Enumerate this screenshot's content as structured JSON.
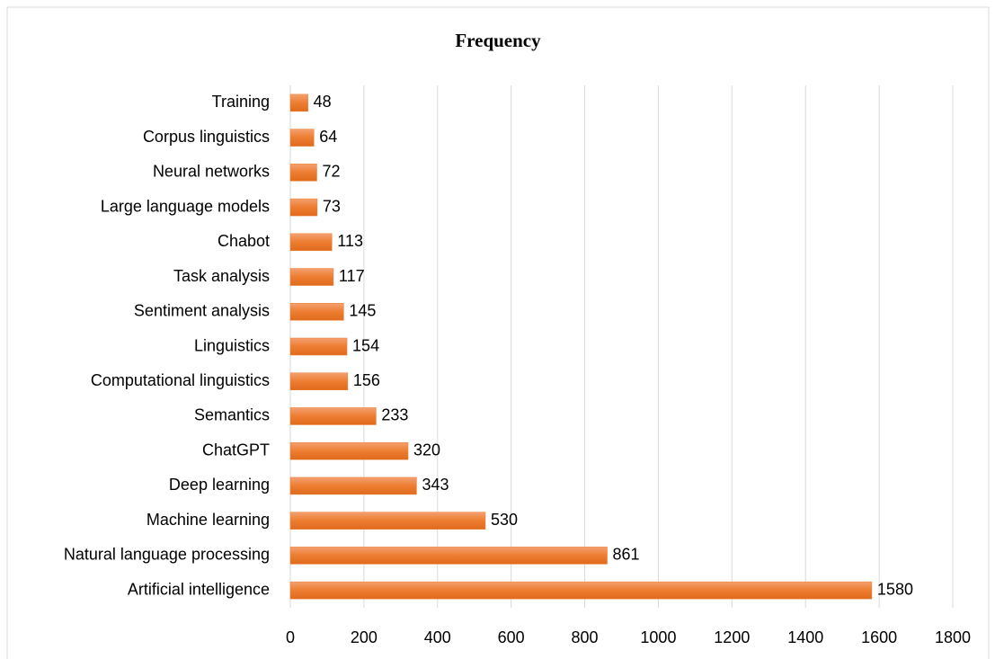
{
  "chart_data": {
    "type": "bar",
    "orientation": "horizontal",
    "title": "Frequency",
    "categories": [
      "Training",
      "Corpus linguistics",
      "Neural networks",
      "Large language models",
      "Chabot",
      "Task analysis",
      "Sentiment analysis",
      "Linguistics",
      "Computational linguistics",
      "Semantics",
      "ChatGPT",
      "Deep learning",
      "Machine learning",
      "Natural language processing",
      "Artificial intelligence"
    ],
    "values": [
      48,
      64,
      72,
      73,
      113,
      117,
      145,
      154,
      156,
      233,
      320,
      343,
      530,
      861,
      1580
    ],
    "color": "#ed7d31",
    "xlim": [
      0,
      1800
    ],
    "xticks": [
      0,
      200,
      400,
      600,
      800,
      1000,
      1200,
      1400,
      1600,
      1800
    ],
    "grid": true
  }
}
